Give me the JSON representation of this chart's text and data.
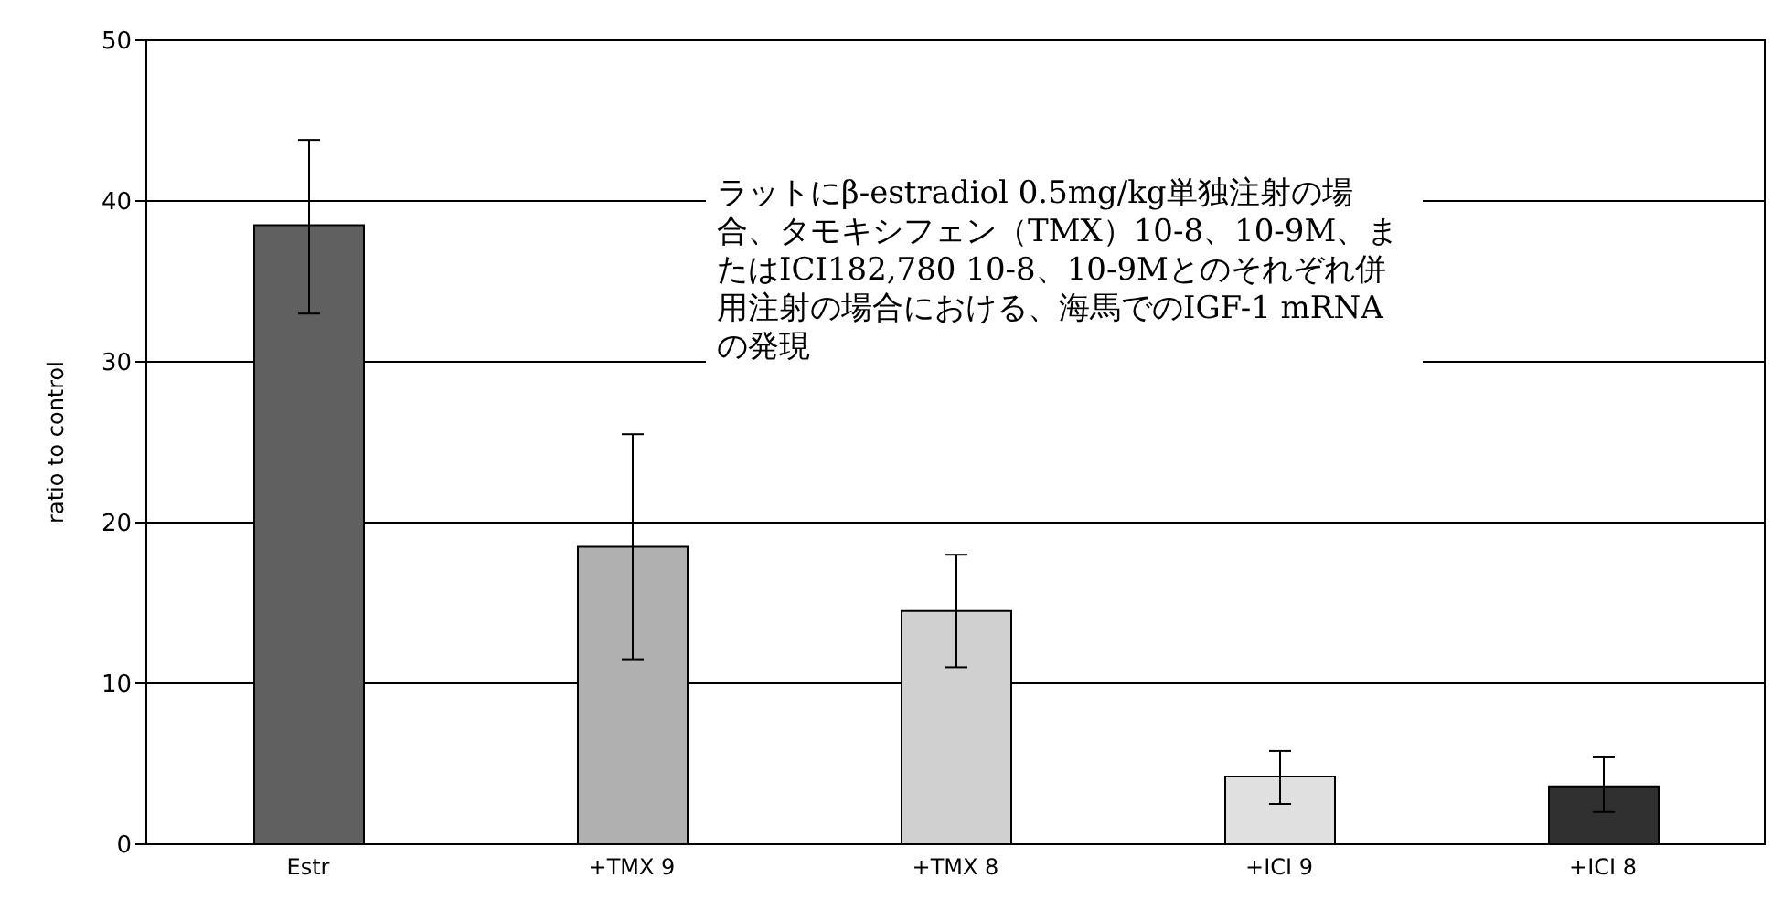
{
  "chart_data": {
    "type": "bar",
    "ylabel": "ratio to control",
    "categories": [
      "Estr",
      "+TMX 9",
      "+TMX 8",
      "+ICI 9",
      "+ICI 8"
    ],
    "values": [
      38.5,
      18.5,
      14.5,
      4.2,
      3.6
    ],
    "colors": [
      "#606060",
      "#b0b0b0",
      "#d0d0d0",
      "#e0e0e0",
      "#303030"
    ],
    "errors": [
      [
        33,
        43.8
      ],
      [
        11.5,
        25.5
      ],
      [
        11,
        18
      ],
      [
        2.5,
        5.8
      ],
      [
        2,
        5.4
      ]
    ],
    "ylim": [
      0,
      50
    ],
    "yticks": [
      0,
      10,
      20,
      30,
      40,
      50
    ],
    "grid": "y",
    "annotations": [
      "ラットにβ-estradiol 0.5mg/kg単独注射の場合、タモキシフェン（TMX）10-8、10-9M、またはICI182,780 10-8、10-9Mとのそれぞれ併用注射の場合における、海馬でのIGF-1 mRNAの発現"
    ]
  }
}
